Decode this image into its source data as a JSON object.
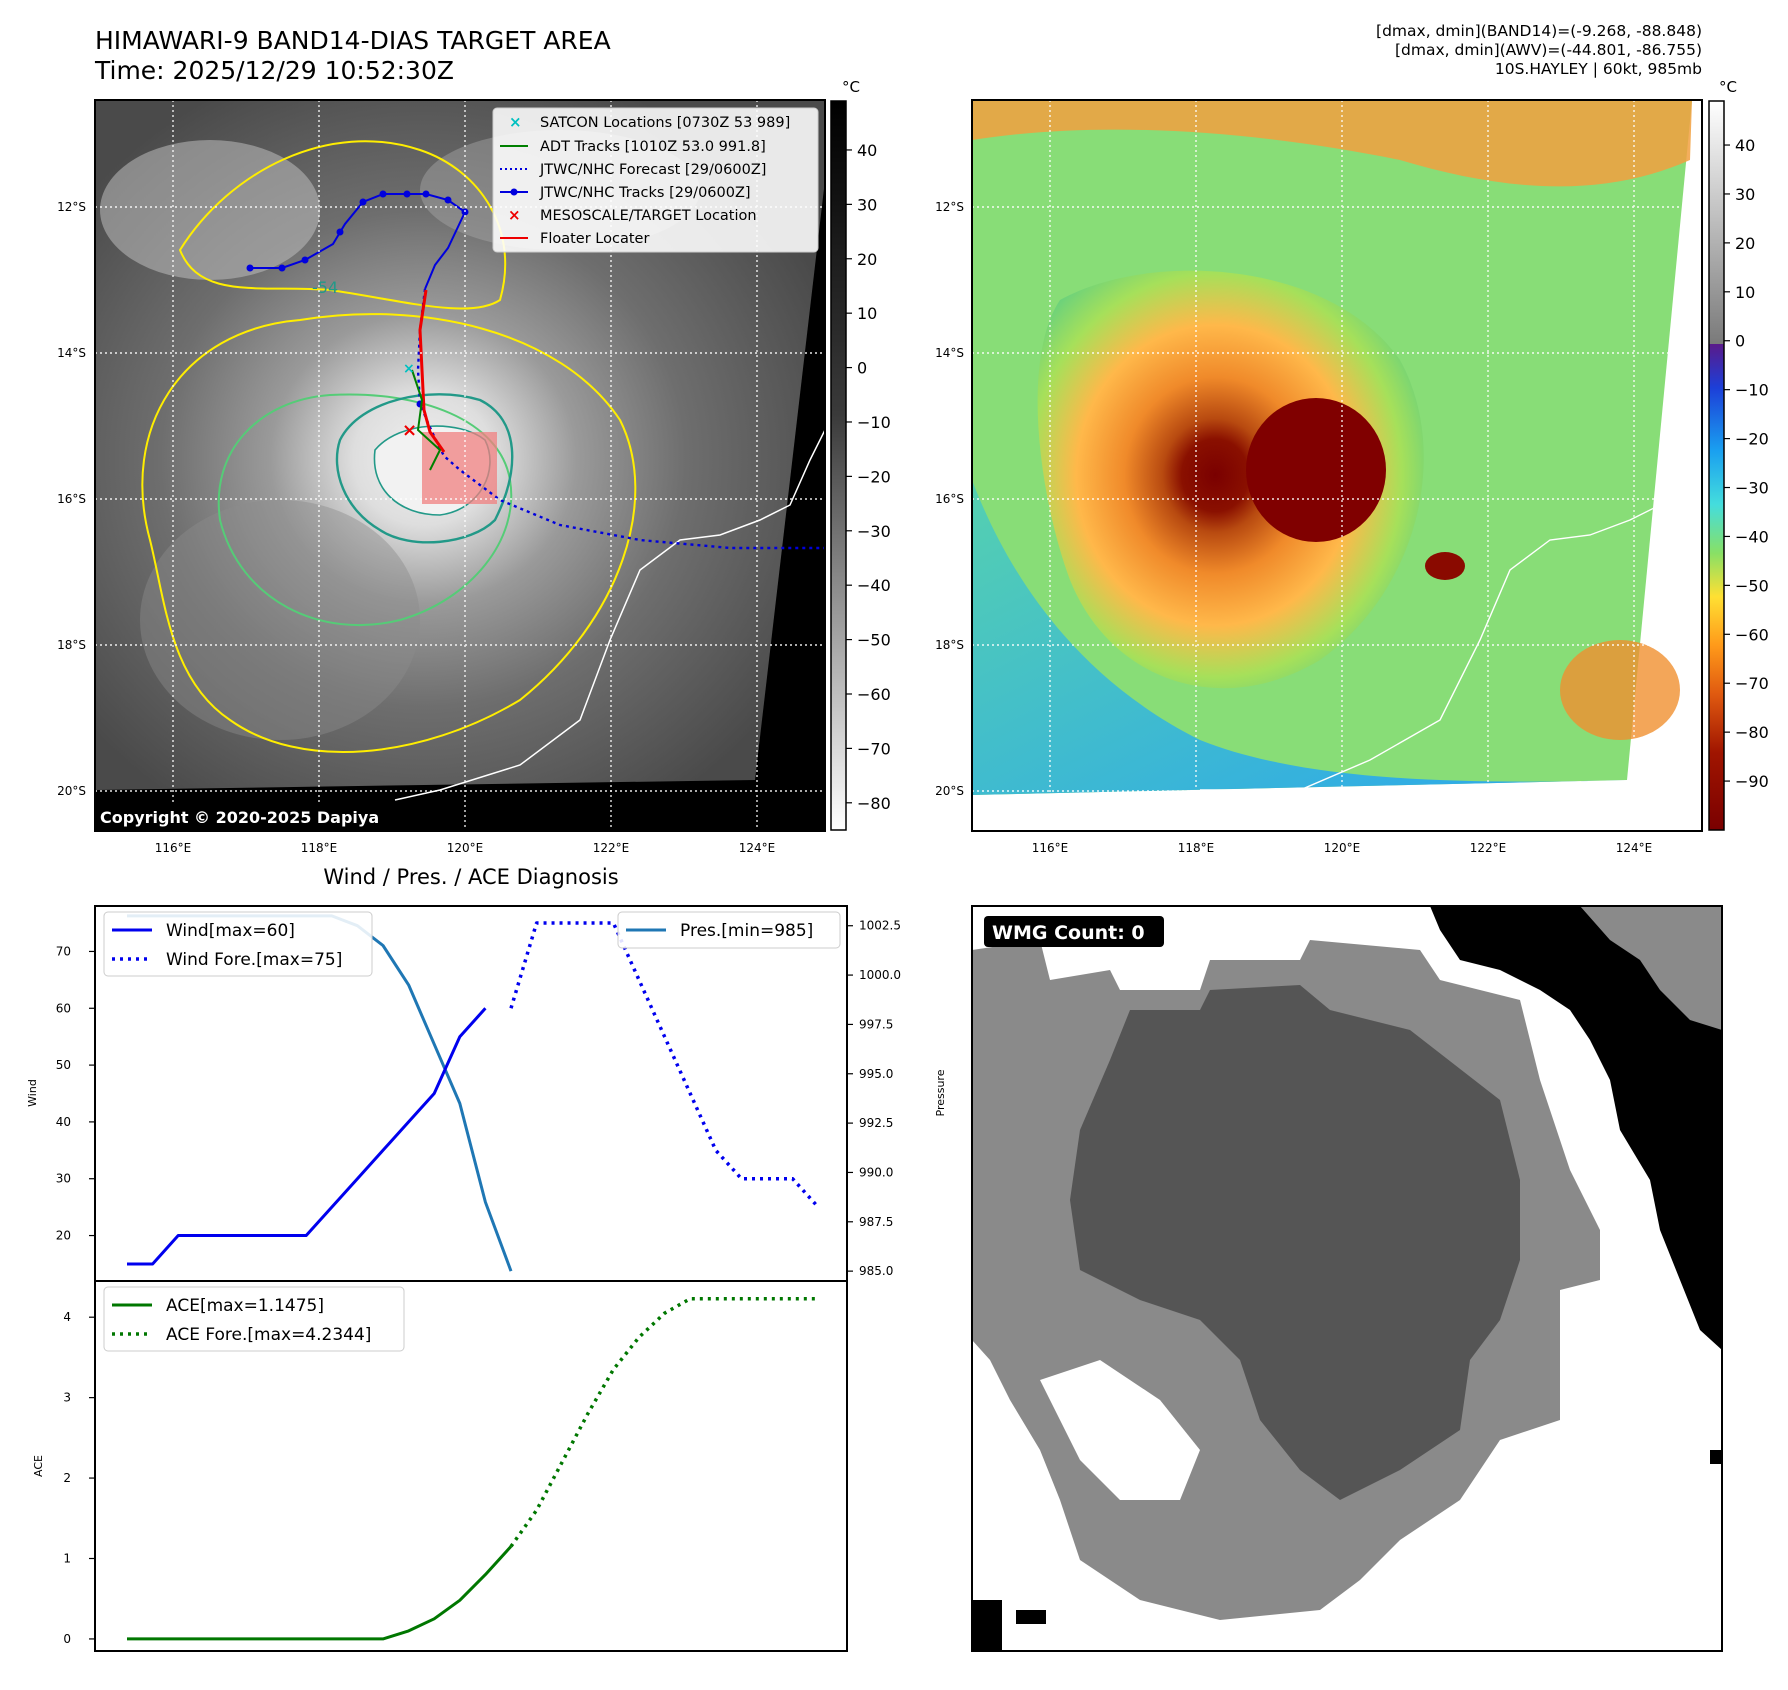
{
  "header": {
    "title_line1": "HIMAWARI-9 BAND14-DIAS TARGET AREA",
    "title_line2": "Time: 2025/12/29 10:52:30Z",
    "meta_line1": "[dmax, dmin](BAND14)=(-9.268, -88.848)",
    "meta_line2": "[dmax, dmin](AWV)=(-44.801, -86.755)",
    "meta_line3": "10S.HAYLEY | 60kt, 985mb"
  },
  "map_panel": {
    "lat_labels": [
      "12°S",
      "14°S",
      "16°S",
      "18°S",
      "20°S"
    ],
    "lon_labels": [
      "116°E",
      "118°E",
      "120°E",
      "122°E",
      "124°E"
    ],
    "copyright": "Copyright © 2020-2025 Dapiya",
    "contour_label": "-54",
    "legend": [
      {
        "label": "SATCON Locations [0730Z 53 989]",
        "color": "#00c0c0",
        "marker": "x"
      },
      {
        "label": "ADT Tracks [1010Z 53.0 991.8]",
        "color": "#008000",
        "marker": "line"
      },
      {
        "label": "JTWC/NHC Forecast [29/0600Z]",
        "color": "#0000dd",
        "marker": "dotted"
      },
      {
        "label": "JTWC/NHC Tracks [29/0600Z]",
        "color": "#0000dd",
        "marker": "line-dot"
      },
      {
        "label": "MESOSCALE/TARGET Location",
        "color": "#ee0000",
        "marker": "x"
      },
      {
        "label": "Floater Locater",
        "color": "#ee0000",
        "marker": "line"
      }
    ]
  },
  "colorbar_gray": {
    "unit": "°C",
    "ticks": [
      "40",
      "30",
      "20",
      "10",
      "0",
      "−10",
      "−20",
      "−30",
      "−40",
      "−50",
      "−60",
      "−70",
      "−80"
    ]
  },
  "colorbar_color": {
    "unit": "°C",
    "ticks": [
      "40",
      "30",
      "20",
      "10",
      "0",
      "−10",
      "−20",
      "−30",
      "−40",
      "−50",
      "−60",
      "−70",
      "−80",
      "−90"
    ]
  },
  "colors": {
    "wind": "#0000ee",
    "pressure": "#1f77b4",
    "ace": "#007700",
    "contour_yellow": "#ffee00",
    "contour_green": "#55cc77",
    "contour_teal": "#229988",
    "target_box": "#f08080",
    "floater": "#ee0000"
  },
  "wmg": {
    "label": "WMG Count: 0"
  },
  "chart_data": [
    {
      "type": "line",
      "title": "Wind / Pres. / ACE Diagnosis",
      "ylabel": "Wind",
      "ylim": [
        12,
        78
      ],
      "yticks": [
        "20",
        "30",
        "40",
        "50",
        "60",
        "70"
      ],
      "series": [
        {
          "name": "Wind[max=60]",
          "style": "solid",
          "x": [
            0,
            1,
            2,
            3,
            4,
            5,
            6,
            7,
            8,
            9,
            10,
            11,
            12,
            13,
            14,
            15
          ],
          "values": [
            15,
            15,
            20,
            20,
            20,
            20,
            20,
            20,
            25,
            30,
            35,
            40,
            45,
            55,
            60,
            null
          ]
        },
        {
          "name": "Wind Fore.[max=75]",
          "style": "dotted",
          "x": [
            15,
            16,
            17,
            18,
            19,
            20,
            21,
            22,
            23,
            24,
            25,
            26,
            27
          ],
          "values": [
            60,
            75,
            75,
            75,
            75,
            65,
            55,
            45,
            35,
            30,
            30,
            30,
            25
          ]
        }
      ],
      "axis2": {
        "ylabel": "Pressure",
        "ylim": [
          984.5,
          1003.5
        ],
        "yticks": [
          "985.0",
          "987.5",
          "990.0",
          "992.5",
          "995.0",
          "997.5",
          "1000.0",
          "1002.5"
        ],
        "series": [
          {
            "name": "Pres.[min=985]",
            "x": [
              0,
              1,
              2,
              3,
              4,
              5,
              6,
              7,
              8,
              9,
              10,
              11,
              12,
              13,
              14,
              15
            ],
            "values": [
              1003,
              1003,
              1003,
              1003,
              1003,
              1003,
              1003,
              1003,
              1003,
              1002.5,
              1001.5,
              999.5,
              996.5,
              993.5,
              988.5,
              985
            ]
          }
        ]
      }
    },
    {
      "type": "line",
      "ylabel": "ACE",
      "ylim": [
        -0.15,
        4.45
      ],
      "yticks": [
        "0",
        "1",
        "2",
        "3",
        "4"
      ],
      "series": [
        {
          "name": "ACE[max=1.1475]",
          "style": "solid",
          "x": [
            0,
            1,
            2,
            3,
            4,
            5,
            6,
            7,
            8,
            9,
            10,
            11,
            12,
            13,
            14,
            15
          ],
          "values": [
            0,
            0,
            0,
            0,
            0,
            0,
            0,
            0,
            0,
            0,
            0,
            0.1,
            0.25,
            0.48,
            0.8,
            1.15
          ]
        },
        {
          "name": "ACE Fore.[max=4.2344]",
          "style": "dotted",
          "x": [
            15,
            16,
            17,
            18,
            19,
            20,
            21,
            22,
            23,
            24,
            25,
            26,
            27
          ],
          "values": [
            1.15,
            1.6,
            2.2,
            2.8,
            3.35,
            3.75,
            4.05,
            4.23,
            4.23,
            4.23,
            4.23,
            4.23,
            4.23
          ]
        }
      ]
    }
  ]
}
